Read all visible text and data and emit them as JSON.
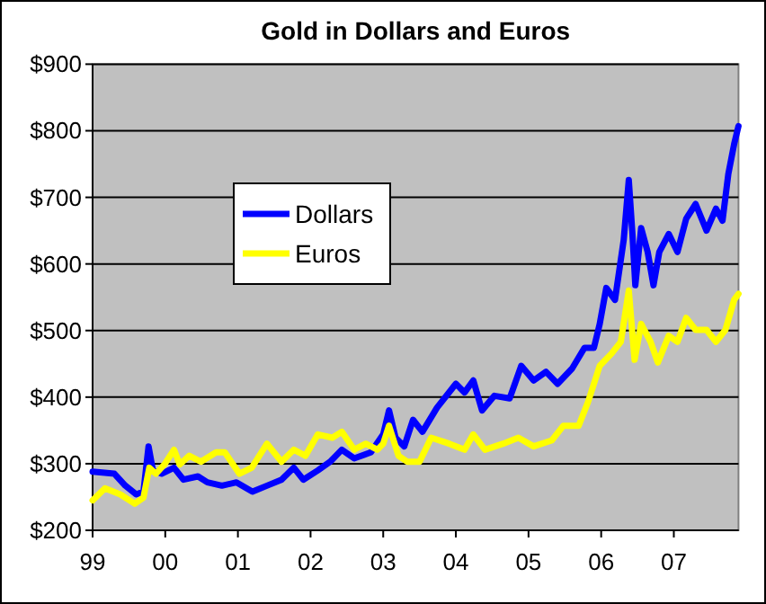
{
  "chart_data": {
    "type": "line",
    "title": "Gold in Dollars and Euros",
    "xlim": [
      1999,
      2007.89
    ],
    "xticks": [
      {
        "value": 1999,
        "label": "99"
      },
      {
        "value": 2000,
        "label": "00"
      },
      {
        "value": 2001,
        "label": "01"
      },
      {
        "value": 2002,
        "label": "02"
      },
      {
        "value": 2003,
        "label": "03"
      },
      {
        "value": 2004,
        "label": "04"
      },
      {
        "value": 2005,
        "label": "05"
      },
      {
        "value": 2006,
        "label": "06"
      },
      {
        "value": 2007,
        "label": "07"
      }
    ],
    "ylim": [
      200,
      900
    ],
    "yticks": [
      {
        "value": 200,
        "label": "$200"
      },
      {
        "value": 300,
        "label": "$300"
      },
      {
        "value": 400,
        "label": "$400"
      },
      {
        "value": 500,
        "label": "$500"
      },
      {
        "value": 600,
        "label": "$600"
      },
      {
        "value": 700,
        "label": "$700"
      },
      {
        "value": 800,
        "label": "$800"
      },
      {
        "value": 900,
        "label": "$900"
      }
    ],
    "grid": "y",
    "legend": "center left",
    "marker": "none",
    "line_style": "solid",
    "series": [
      {
        "name": "Dollars",
        "color": "#0000ff",
        "x": [
          1999,
          1999.3,
          1999.45,
          1999.6,
          1999.7,
          1999.77,
          1999.83,
          1999.95,
          2000.12,
          2000.25,
          2000.45,
          2000.58,
          2000.78,
          2000.98,
          2001.2,
          2001.4,
          2001.6,
          2001.77,
          2001.9,
          2002.1,
          2002.27,
          2002.43,
          2002.6,
          2002.83,
          2003,
          2003.08,
          2003.17,
          2003.29,
          2003.41,
          2003.54,
          2003.74,
          2004,
          2004.12,
          2004.24,
          2004.36,
          2004.53,
          2004.74,
          2004.9,
          2005.07,
          2005.24,
          2005.4,
          2005.6,
          2005.77,
          2005.9,
          2005.98,
          2006.07,
          2006.19,
          2006.31,
          2006.38,
          2006.43,
          2006.47,
          2006.55,
          2006.64,
          2006.72,
          2006.8,
          2006.93,
          2007.05,
          2007.17,
          2007.3,
          2007.45,
          2007.58,
          2007.67,
          2007.75,
          2007.83,
          2007.89
        ],
        "values": [
          288,
          285,
          267,
          254,
          258,
          326,
          290,
          285,
          294,
          276,
          281,
          272,
          267,
          272,
          258,
          267,
          276,
          294,
          276,
          290,
          303,
          321,
          308,
          317,
          344,
          380,
          339,
          326,
          366,
          348,
          384,
          420,
          407,
          425,
          380,
          402,
          398,
          447,
          425,
          438,
          420,
          443,
          474,
          474,
          510,
          564,
          546,
          636,
          726,
          645,
          568,
          654,
          618,
          568,
          618,
          645,
          618,
          668,
          690,
          650,
          683,
          665,
          735,
          780,
          807
        ]
      },
      {
        "name": "Euros",
        "color": "#ffff00",
        "x": [
          1999,
          1999.17,
          1999.38,
          1999.58,
          1999.7,
          1999.78,
          1999.87,
          1999.99,
          2000.12,
          2000.2,
          2000.33,
          2000.49,
          2000.7,
          2000.82,
          2001.02,
          2001.19,
          2001.4,
          2001.6,
          2001.77,
          2001.93,
          2002.1,
          2002.3,
          2002.43,
          2002.6,
          2002.76,
          2002.92,
          2003,
          2003.08,
          2003.21,
          2003.33,
          2003.5,
          2003.66,
          2003.91,
          2004.12,
          2004.24,
          2004.4,
          2004.65,
          2004.86,
          2005.07,
          2005.32,
          2005.48,
          2005.69,
          2005.82,
          2005.98,
          2006.14,
          2006.27,
          2006.38,
          2006.46,
          2006.55,
          2006.68,
          2006.78,
          2006.93,
          2007.05,
          2007.17,
          2007.3,
          2007.45,
          2007.58,
          2007.71,
          2007.83,
          2007.89
        ],
        "values": [
          245,
          263,
          254,
          240,
          249,
          294,
          285,
          299,
          321,
          299,
          312,
          303,
          317,
          317,
          285,
          294,
          330,
          303,
          321,
          312,
          344,
          339,
          348,
          321,
          330,
          321,
          330,
          357,
          312,
          303,
          303,
          339,
          330,
          321,
          344,
          321,
          330,
          339,
          326,
          335,
          357,
          357,
          393,
          447,
          465,
          483,
          560,
          456,
          510,
          483,
          452,
          492,
          483,
          519,
          501,
          501,
          483,
          501,
          546,
          555
        ]
      }
    ]
  }
}
